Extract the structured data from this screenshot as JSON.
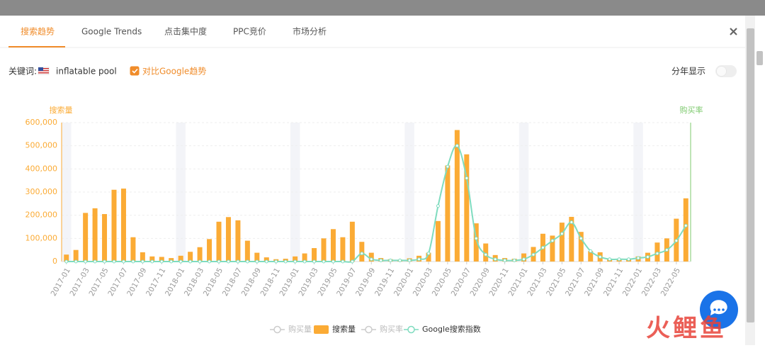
{
  "tabs": [
    "搜索趋势",
    "Google Trends",
    "点击集中度",
    "PPC竞价",
    "市场分析"
  ],
  "active_tab": 0,
  "keyword_label": "关键词:",
  "keyword": "inflatable pool",
  "compare_checkbox": "对比Google趋势",
  "compare_checked": true,
  "yearly_toggle": "分年显示",
  "watermark": "火鲤鱼",
  "chart_data": {
    "type": "bar",
    "ylabel": "搜索量",
    "y2label": "购买率",
    "categories": [
      "2017-01",
      null,
      "2017-03",
      null,
      "2017-05",
      null,
      "2017-07",
      null,
      "2017-09",
      null,
      "2017-11",
      null,
      "2018-01",
      null,
      "2018-03",
      null,
      "2018-05",
      null,
      "2018-07",
      null,
      "2018-09",
      null,
      "2018-11",
      null,
      "2019-01",
      null,
      "2019-03",
      null,
      "2019-05",
      null,
      "2019-07",
      null,
      "2019-09",
      null,
      "2019-11",
      null,
      "2020-01",
      null,
      "2020-03",
      null,
      "2020-05",
      null,
      "2020-07",
      null,
      "2020-09",
      null,
      "2020-11",
      null,
      "2021-01",
      null,
      "2021-03",
      null,
      "2021-05",
      null,
      "2021-07",
      null,
      "2021-09",
      null,
      "2021-11",
      null,
      "2022-01",
      null,
      "2022-03",
      null,
      "2022-05",
      null
    ],
    "series": [
      {
        "name": "搜索量",
        "type": "bar",
        "color": "#fbab35",
        "values": [
          30000,
          50000,
          210000,
          230000,
          205000,
          310000,
          315000,
          105000,
          40000,
          22000,
          20000,
          15000,
          25000,
          42000,
          62000,
          97000,
          172000,
          192000,
          178000,
          90000,
          38000,
          18000,
          10000,
          12000,
          22000,
          35000,
          58000,
          100000,
          140000,
          105000,
          172000,
          85000,
          38000,
          15000,
          10000,
          8000,
          14000,
          25000,
          38000,
          175000,
          415000,
          568000,
          463000,
          165000,
          78000,
          28000,
          15000,
          12000,
          35000,
          63000,
          120000,
          112000,
          168000,
          193000,
          128000,
          45000,
          40000,
          12000,
          10000,
          12000,
          22000,
          38000,
          82000,
          100000,
          185000,
          273000
        ]
      },
      {
        "name": "Google搜索指数",
        "type": "line",
        "axis": "y2",
        "color": "#7fdcbf",
        "values": [
          0,
          0,
          0,
          0,
          0,
          0,
          0,
          0,
          0,
          0,
          0,
          0,
          0,
          0,
          0,
          0,
          0,
          0,
          0,
          0,
          0,
          0,
          0,
          0,
          0,
          0,
          0,
          0,
          0,
          0,
          0,
          7,
          2,
          1,
          1,
          1,
          1,
          2,
          7,
          48,
          82,
          100,
          72,
          20,
          6,
          2,
          1,
          1,
          2,
          6,
          12,
          18,
          24,
          34,
          20,
          9,
          4,
          2,
          2,
          2,
          3,
          4,
          7,
          10,
          18,
          31
        ]
      }
    ],
    "legend": [
      {
        "name": "购买量",
        "active": false
      },
      {
        "name": "搜索量",
        "active": true
      },
      {
        "name": "购买率",
        "active": false
      },
      {
        "name": "Google搜索指数",
        "active": true
      }
    ],
    "ylim": [
      0,
      600000
    ],
    "yticks": [
      0,
      {
        "value": 100000,
        "label": "100,000"
      },
      {
        "value": 200000,
        "label": "200,000"
      },
      {
        "value": 300000,
        "label": "300,000"
      },
      {
        "value": 400000,
        "label": "400,000"
      },
      {
        "value": 500000,
        "label": "500,000"
      },
      {
        "value": 600000,
        "label": "600,000"
      }
    ],
    "y2lim": [
      0,
      120
    ],
    "grid": true,
    "left_axis_color": "#fbab35",
    "right_axis_color": "#7cc96c"
  }
}
